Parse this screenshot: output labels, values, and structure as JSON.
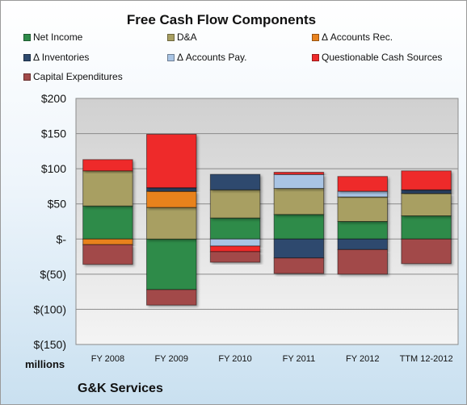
{
  "chart_data": {
    "type": "bar",
    "stacked": true,
    "title": "Free Cash Flow Components",
    "categories": [
      "FY 2008",
      "FY 2009",
      "FY 2010",
      "FY 2011",
      "FY 2012",
      "TTM 12-2012"
    ],
    "ylim": [
      -150,
      200
    ],
    "yticks": [
      200,
      150,
      100,
      50,
      0,
      -50,
      -100,
      -150
    ],
    "ytick_labels": [
      "$200",
      "$150",
      "$100",
      "$50",
      "$-",
      "$(50)",
      "$(100)",
      "$(150)"
    ],
    "unit_label": "millions",
    "legend_position": "top",
    "grid": true,
    "series": [
      {
        "name": "Net Income",
        "color": "#2e8b4a",
        "values": [
          47,
          -72,
          30,
          35,
          25,
          33
        ]
      },
      {
        "name": "D&A",
        "color": "#a89f62",
        "values": [
          50,
          45,
          40,
          37,
          35,
          32
        ]
      },
      {
        "name": "Δ Accounts Rec.",
        "color": "#e8821e",
        "values": [
          -8,
          23,
          0,
          0,
          0,
          0
        ]
      },
      {
        "name": "Δ Inventories",
        "color": "#2e4a6e",
        "values": [
          0,
          5,
          22,
          -27,
          -15,
          5
        ]
      },
      {
        "name": "Δ Accounts Pay.",
        "color": "#a9c4e4",
        "values": [
          0,
          0,
          -10,
          20,
          8,
          0
        ]
      },
      {
        "name": "Questionable Cash Sources",
        "color": "#ee2a2a",
        "values": [
          16,
          76,
          -8,
          3,
          21,
          27
        ]
      },
      {
        "name": "Capital Expenditures",
        "color": "#a24a4a",
        "values": [
          -28,
          -22,
          -15,
          -22,
          -35,
          -35
        ]
      }
    ]
  },
  "footer": {
    "company": "G&K Services"
  }
}
